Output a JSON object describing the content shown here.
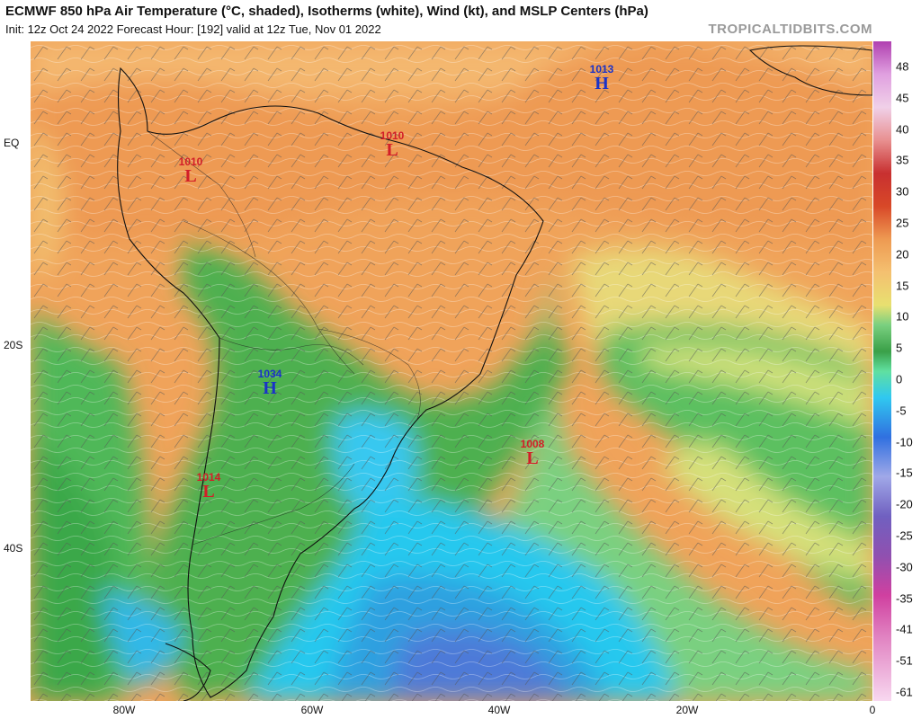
{
  "header": {
    "title": "ECMWF 850 hPa Air Temperature (°C, shaded), Isotherms (white), Wind (kt), and MSLP Centers (hPa)",
    "subtitle": "Init: 12z Oct 24 2022   Forecast Hour: [192]   valid at 12z Tue, Nov 01 2022",
    "brand": "TROPICALTIDBITS.COM"
  },
  "axes": {
    "lat_labels": [
      "EQ",
      "20S",
      "40S"
    ],
    "lon_labels": [
      "80W",
      "60W",
      "40W",
      "20W",
      "0"
    ]
  },
  "colorbar": {
    "labels": [
      "48",
      "45",
      "40",
      "35",
      "30",
      "25",
      "20",
      "15",
      "10",
      "5",
      "0",
      "-5",
      "-10",
      "-15",
      "-20",
      "-25",
      "-30",
      "-35",
      "-41",
      "-51",
      "-61"
    ]
  },
  "pressure_centers": [
    {
      "type": "L",
      "value": "1010",
      "kind": "low"
    },
    {
      "type": "L",
      "value": "1010",
      "kind": "low"
    },
    {
      "type": "H",
      "value": "1013",
      "kind": "high"
    },
    {
      "type": "H",
      "value": "1034",
      "kind": "high"
    },
    {
      "type": "L",
      "value": "1008",
      "kind": "low"
    },
    {
      "type": "L",
      "value": "1014",
      "kind": "low"
    }
  ],
  "colors": {
    "low": "#d21e28",
    "high": "#1a32c8"
  }
}
